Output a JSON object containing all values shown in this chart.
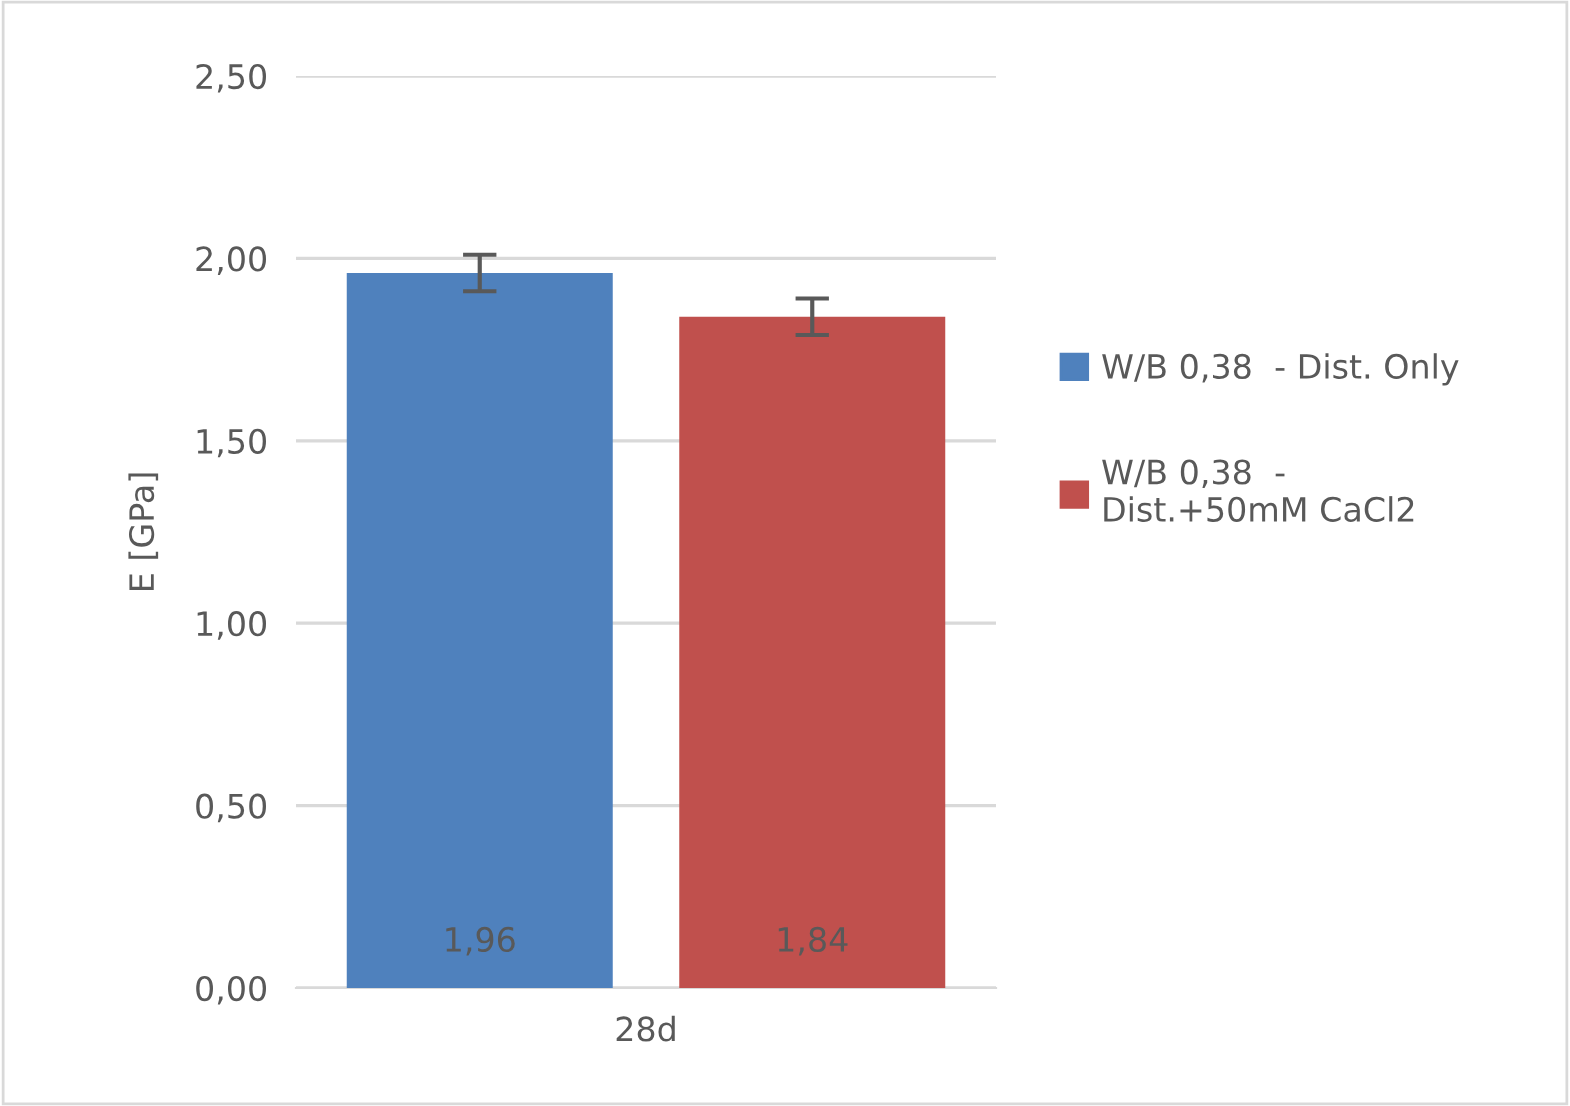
{
  "chart_data": {
    "type": "bar",
    "ylabel": "E [GPa]",
    "categories": [
      "28d"
    ],
    "series": [
      {
        "name": "W/B 0,38  - Dist. Only",
        "color": "#4f81bd",
        "values": [
          1.96
        ],
        "errors": [
          0.05
        ],
        "value_labels": [
          "1,96"
        ]
      },
      {
        "name": "W/B 0,38  -\nDist.+50mM CaCl2",
        "color": "#c0504d",
        "values": [
          1.84
        ],
        "errors": [
          0.05
        ],
        "value_labels": [
          "1,84"
        ]
      }
    ],
    "ylim": [
      0,
      2.5
    ],
    "yticks": [
      {
        "value": 0,
        "label": "0,00"
      },
      {
        "value": 0.5,
        "label": "0,50"
      },
      {
        "value": 1,
        "label": "1,00"
      },
      {
        "value": 1.5,
        "label": "1,50"
      },
      {
        "value": 2,
        "label": "2,00"
      },
      {
        "value": 2.5,
        "label": "2,50"
      }
    ],
    "grid": "y",
    "legend": "right"
  }
}
